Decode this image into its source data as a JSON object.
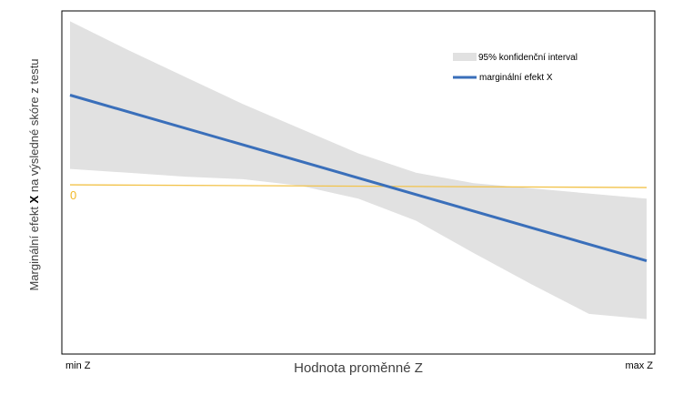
{
  "chart_data": {
    "type": "line",
    "xlabel": "Hodnota proměnné Z",
    "ylabel_parts": [
      "Marginální efekt ",
      "X",
      " na výsledné skóre z testu"
    ],
    "x_tick_labels": [
      "min Z",
      "max Z"
    ],
    "x": [
      0,
      1
    ],
    "xlim": [
      0,
      1
    ],
    "ylim": [
      -1.3,
      1.35
    ],
    "grid": false,
    "legend_position": "top-right",
    "zero_label": "0",
    "series": [
      {
        "name": "marginální efekt X",
        "color": "#3a6fba",
        "values": [
          0.7,
          -0.58
        ]
      }
    ],
    "confidence_band": {
      "name": "95%  konfidenční interval",
      "color": "#e1e1e1",
      "x": [
        0,
        0.1,
        0.2,
        0.3,
        0.4,
        0.5,
        0.6,
        0.7,
        0.8,
        0.9,
        1.0
      ],
      "upper": [
        1.27,
        1.05,
        0.84,
        0.63,
        0.44,
        0.25,
        0.1,
        0.02,
        -0.02,
        -0.06,
        -0.1
      ],
      "lower": [
        0.13,
        0.1,
        0.07,
        0.05,
        0.0,
        -0.1,
        -0.27,
        -0.52,
        -0.76,
        -0.99,
        -1.03
      ]
    },
    "reference_line": {
      "y": 0,
      "color": "#f2c34b"
    }
  }
}
